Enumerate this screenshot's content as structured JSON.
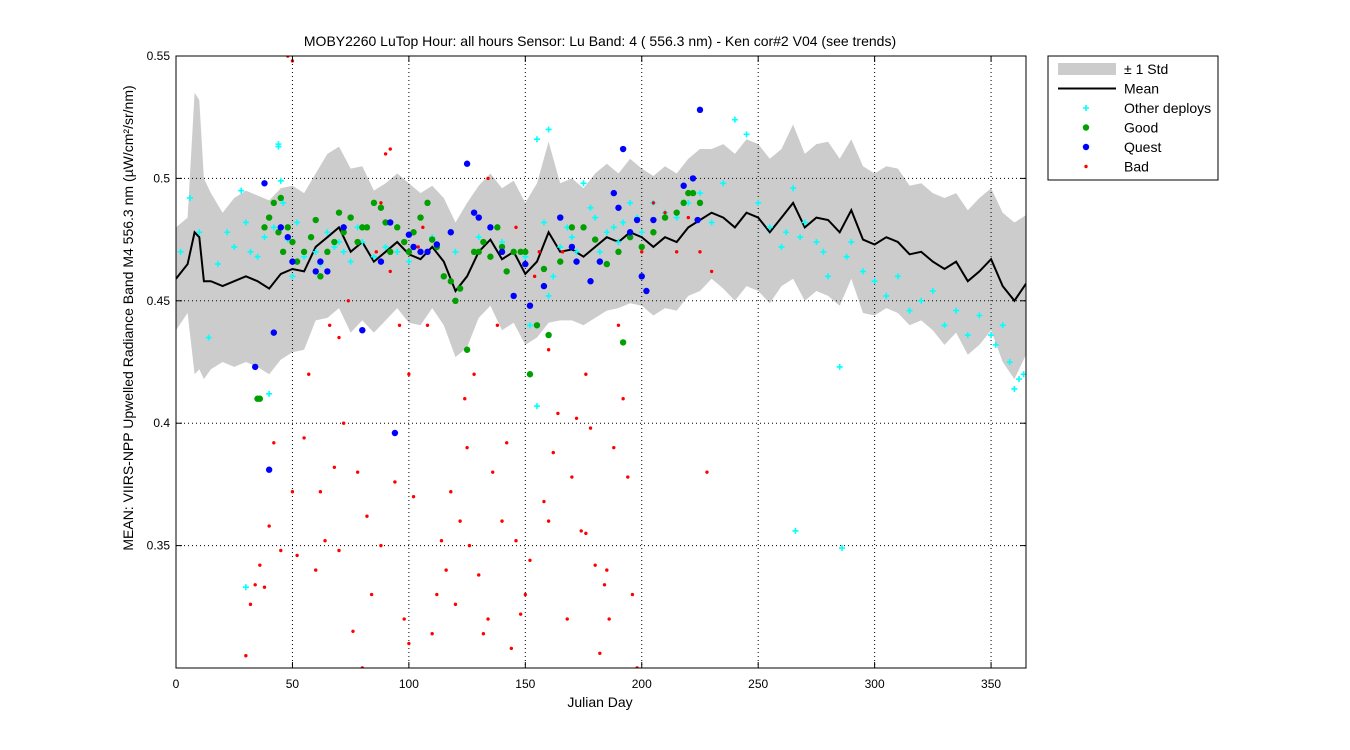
{
  "chart_data": {
    "type": "scatter",
    "title": "MOBY2260   LuTop  Hour: all hours  Sensor: Lu Band: 4 ( 556.3 nm)  - Ken cor#2 V04 (see trends)",
    "xlabel": "Julian Day",
    "ylabel": "MEAN: VIIRS-NPP Upwelled Radiance Band M4 556.3 nm (µW/cm²/sr/nm)",
    "xlim": [
      0,
      365
    ],
    "ylim": [
      0.3,
      0.55
    ],
    "xticks": [
      0,
      50,
      100,
      150,
      200,
      250,
      300,
      350
    ],
    "yticks": [
      0.35,
      0.4,
      0.45,
      0.5,
      0.55
    ],
    "ytick_labels": [
      "0.35",
      "0.4",
      "0.45",
      "0.5",
      "0.55"
    ],
    "grid": true,
    "legend_position": "outside-top-right",
    "legend": [
      "± 1 Std",
      "Mean",
      "Other deploys",
      "Good",
      "Quest",
      "Bad"
    ],
    "colors": {
      "std": "#cccccc",
      "mean": "#000000",
      "other": "#00ffff",
      "good": "#00a000",
      "quest": "#0000ff",
      "bad": "#ff0000"
    },
    "mean_series": {
      "x": [
        0,
        5,
        8,
        10,
        12,
        15,
        20,
        25,
        30,
        35,
        40,
        45,
        50,
        55,
        60,
        65,
        70,
        75,
        80,
        85,
        90,
        95,
        100,
        105,
        110,
        115,
        120,
        125,
        130,
        135,
        140,
        145,
        150,
        155,
        160,
        165,
        170,
        175,
        180,
        185,
        190,
        195,
        200,
        205,
        210,
        215,
        220,
        225,
        230,
        235,
        240,
        245,
        250,
        255,
        260,
        265,
        270,
        275,
        280,
        285,
        290,
        295,
        300,
        305,
        310,
        315,
        320,
        325,
        330,
        335,
        340,
        345,
        350,
        355,
        360,
        365
      ],
      "y": [
        0.459,
        0.465,
        0.478,
        0.476,
        0.458,
        0.458,
        0.456,
        0.458,
        0.46,
        0.458,
        0.455,
        0.461,
        0.463,
        0.462,
        0.472,
        0.476,
        0.48,
        0.47,
        0.474,
        0.466,
        0.47,
        0.474,
        0.469,
        0.467,
        0.472,
        0.466,
        0.454,
        0.46,
        0.47,
        0.475,
        0.467,
        0.47,
        0.461,
        0.466,
        0.478,
        0.47,
        0.471,
        0.468,
        0.472,
        0.476,
        0.474,
        0.478,
        0.476,
        0.472,
        0.476,
        0.474,
        0.48,
        0.483,
        0.486,
        0.484,
        0.48,
        0.486,
        0.484,
        0.478,
        0.484,
        0.49,
        0.48,
        0.484,
        0.483,
        0.478,
        0.487,
        0.475,
        0.473,
        0.476,
        0.474,
        0.469,
        0.47,
        0.466,
        0.463,
        0.466,
        0.458,
        0.462,
        0.467,
        0.456,
        0.45,
        0.457
      ]
    },
    "std_band": {
      "x": [
        0,
        5,
        8,
        10,
        12,
        15,
        20,
        25,
        30,
        35,
        40,
        45,
        50,
        55,
        60,
        65,
        70,
        75,
        80,
        85,
        90,
        95,
        100,
        105,
        110,
        115,
        120,
        125,
        130,
        135,
        140,
        145,
        150,
        155,
        160,
        165,
        170,
        175,
        180,
        185,
        190,
        195,
        200,
        205,
        210,
        215,
        220,
        225,
        230,
        235,
        240,
        245,
        250,
        255,
        260,
        265,
        270,
        275,
        280,
        285,
        290,
        295,
        300,
        305,
        310,
        315,
        320,
        325,
        330,
        335,
        340,
        345,
        350,
        355,
        360,
        365
      ],
      "upper": [
        0.48,
        0.484,
        0.535,
        0.532,
        0.5,
        0.494,
        0.486,
        0.492,
        0.495,
        0.493,
        0.491,
        0.496,
        0.497,
        0.494,
        0.502,
        0.51,
        0.513,
        0.504,
        0.505,
        0.495,
        0.498,
        0.502,
        0.498,
        0.494,
        0.497,
        0.492,
        0.482,
        0.49,
        0.497,
        0.502,
        0.496,
        0.499,
        0.49,
        0.498,
        0.515,
        0.498,
        0.5,
        0.496,
        0.502,
        0.506,
        0.502,
        0.508,
        0.504,
        0.501,
        0.505,
        0.502,
        0.508,
        0.512,
        0.512,
        0.514,
        0.51,
        0.516,
        0.514,
        0.508,
        0.512,
        0.522,
        0.51,
        0.514,
        0.515,
        0.508,
        0.516,
        0.505,
        0.502,
        0.505,
        0.504,
        0.497,
        0.498,
        0.494,
        0.492,
        0.494,
        0.487,
        0.492,
        0.496,
        0.486,
        0.482,
        0.485
      ],
      "lower": [
        0.438,
        0.445,
        0.42,
        0.422,
        0.418,
        0.422,
        0.425,
        0.423,
        0.425,
        0.423,
        0.42,
        0.426,
        0.429,
        0.43,
        0.442,
        0.443,
        0.447,
        0.437,
        0.442,
        0.437,
        0.442,
        0.447,
        0.441,
        0.44,
        0.447,
        0.44,
        0.427,
        0.431,
        0.443,
        0.448,
        0.438,
        0.441,
        0.432,
        0.435,
        0.441,
        0.442,
        0.442,
        0.44,
        0.443,
        0.446,
        0.447,
        0.449,
        0.448,
        0.444,
        0.447,
        0.446,
        0.452,
        0.454,
        0.459,
        0.455,
        0.45,
        0.456,
        0.454,
        0.449,
        0.456,
        0.459,
        0.45,
        0.454,
        0.452,
        0.448,
        0.459,
        0.445,
        0.444,
        0.447,
        0.445,
        0.44,
        0.442,
        0.438,
        0.432,
        0.437,
        0.428,
        0.432,
        0.438,
        0.425,
        0.418,
        0.428
      ]
    },
    "other_deploys": {
      "x": [
        2,
        6,
        10,
        14,
        18,
        22,
        25,
        28,
        30,
        32,
        35,
        38,
        40,
        42,
        44,
        46,
        48,
        50,
        52,
        55,
        58,
        60,
        62,
        65,
        68,
        70,
        72,
        75,
        78,
        80,
        85,
        90,
        95,
        100,
        105,
        110,
        120,
        130,
        140,
        150,
        152,
        155,
        158,
        160,
        162,
        165,
        168,
        170,
        172,
        175,
        178,
        180,
        182,
        185,
        188,
        190,
        192,
        195,
        198,
        200,
        205,
        210,
        215,
        220,
        225,
        230,
        235,
        240,
        245,
        250,
        255,
        260,
        262,
        265,
        268,
        270,
        275,
        278,
        280,
        285,
        288,
        290,
        295,
        300,
        305,
        310,
        315,
        320,
        325,
        330,
        335,
        340,
        345,
        350,
        352,
        355,
        358,
        360,
        362,
        364,
        30,
        266,
        286,
        44,
        45,
        155,
        160
      ],
      "y": [
        0.47,
        0.492,
        0.478,
        0.435,
        0.465,
        0.478,
        0.472,
        0.495,
        0.482,
        0.47,
        0.468,
        0.476,
        0.412,
        0.48,
        0.514,
        0.49,
        0.475,
        0.46,
        0.482,
        0.468,
        0.476,
        0.47,
        0.465,
        0.478,
        0.472,
        0.474,
        0.47,
        0.466,
        0.48,
        0.474,
        0.468,
        0.472,
        0.47,
        0.466,
        0.47,
        0.476,
        0.47,
        0.476,
        0.474,
        0.468,
        0.44,
        0.516,
        0.482,
        0.52,
        0.46,
        0.472,
        0.48,
        0.476,
        0.47,
        0.498,
        0.488,
        0.484,
        0.47,
        0.478,
        0.48,
        0.474,
        0.482,
        0.49,
        0.484,
        0.478,
        0.49,
        0.486,
        0.484,
        0.49,
        0.494,
        0.482,
        0.498,
        0.524,
        0.518,
        0.49,
        0.48,
        0.472,
        0.478,
        0.496,
        0.476,
        0.482,
        0.474,
        0.47,
        0.46,
        0.423,
        0.468,
        0.474,
        0.462,
        0.458,
        0.452,
        0.46,
        0.446,
        0.45,
        0.454,
        0.44,
        0.446,
        0.436,
        0.444,
        0.436,
        0.432,
        0.44,
        0.425,
        0.414,
        0.418,
        0.42,
        0.333,
        0.356,
        0.349,
        0.513,
        0.499,
        0.407,
        0.452
      ]
    },
    "good": {
      "x": [
        35,
        36,
        38,
        40,
        42,
        44,
        45,
        46,
        48,
        50,
        52,
        55,
        58,
        60,
        62,
        65,
        68,
        70,
        72,
        75,
        78,
        80,
        82,
        85,
        88,
        90,
        92,
        95,
        98,
        100,
        102,
        105,
        108,
        110,
        112,
        115,
        118,
        120,
        122,
        125,
        128,
        130,
        132,
        135,
        138,
        140,
        142,
        145,
        148,
        150,
        152,
        155,
        158,
        160,
        165,
        170,
        175,
        180,
        185,
        190,
        192,
        195,
        200,
        205,
        210,
        215,
        218,
        220,
        222,
        225
      ],
      "y": [
        0.41,
        0.41,
        0.48,
        0.484,
        0.49,
        0.478,
        0.492,
        0.47,
        0.48,
        0.474,
        0.466,
        0.47,
        0.476,
        0.483,
        0.46,
        0.47,
        0.474,
        0.486,
        0.478,
        0.484,
        0.474,
        0.48,
        0.48,
        0.49,
        0.488,
        0.482,
        0.47,
        0.48,
        0.474,
        0.47,
        0.478,
        0.484,
        0.49,
        0.475,
        0.472,
        0.46,
        0.458,
        0.45,
        0.455,
        0.43,
        0.47,
        0.47,
        0.474,
        0.468,
        0.48,
        0.472,
        0.462,
        0.47,
        0.47,
        0.47,
        0.42,
        0.44,
        0.463,
        0.436,
        0.466,
        0.48,
        0.48,
        0.475,
        0.465,
        0.47,
        0.433,
        0.476,
        0.472,
        0.478,
        0.484,
        0.486,
        0.49,
        0.494,
        0.494,
        0.49
      ],
      "labels": []
    },
    "quest": {
      "x": [
        34,
        38,
        40,
        42,
        45,
        48,
        50,
        60,
        62,
        65,
        72,
        80,
        88,
        92,
        94,
        100,
        102,
        105,
        108,
        112,
        118,
        125,
        128,
        130,
        135,
        140,
        145,
        150,
        152,
        158,
        165,
        170,
        172,
        178,
        182,
        188,
        190,
        192,
        195,
        198,
        200,
        202,
        205,
        218,
        222,
        224,
        225
      ],
      "y": [
        0.423,
        0.498,
        0.381,
        0.437,
        0.48,
        0.476,
        0.466,
        0.462,
        0.466,
        0.462,
        0.48,
        0.438,
        0.466,
        0.482,
        0.396,
        0.477,
        0.472,
        0.47,
        0.47,
        0.473,
        0.478,
        0.506,
        0.486,
        0.484,
        0.48,
        0.47,
        0.452,
        0.465,
        0.448,
        0.456,
        0.484,
        0.472,
        0.466,
        0.458,
        0.466,
        0.494,
        0.488,
        0.512,
        0.478,
        0.483,
        0.46,
        0.454,
        0.483,
        0.497,
        0.5,
        0.483,
        0.528
      ]
    },
    "bad": {
      "x": [
        30,
        32,
        34,
        36,
        38,
        40,
        42,
        45,
        48,
        50,
        52,
        55,
        57,
        60,
        62,
        64,
        66,
        68,
        70,
        72,
        74,
        76,
        78,
        80,
        82,
        84,
        86,
        88,
        90,
        92,
        94,
        96,
        98,
        100,
        102,
        104,
        106,
        108,
        110,
        112,
        114,
        116,
        118,
        120,
        122,
        124,
        126,
        128,
        130,
        132,
        134,
        136,
        138,
        140,
        142,
        144,
        146,
        148,
        150,
        152,
        154,
        156,
        158,
        160,
        162,
        164,
        166,
        168,
        170,
        172,
        174,
        176,
        178,
        180,
        182,
        184,
        186,
        188,
        190,
        192,
        194,
        196,
        198,
        200,
        205,
        210,
        215,
        220,
        225,
        228,
        230,
        50,
        70,
        88,
        92,
        100,
        125,
        134,
        146,
        160,
        176,
        185
      ],
      "y": [
        0.305,
        0.326,
        0.334,
        0.342,
        0.333,
        0.358,
        0.392,
        0.348,
        0.55,
        0.372,
        0.346,
        0.394,
        0.42,
        0.34,
        0.372,
        0.352,
        0.44,
        0.382,
        0.348,
        0.4,
        0.45,
        0.315,
        0.38,
        0.3,
        0.362,
        0.33,
        0.47,
        0.49,
        0.51,
        0.462,
        0.376,
        0.44,
        0.32,
        0.42,
        0.37,
        0.472,
        0.48,
        0.44,
        0.314,
        0.33,
        0.352,
        0.34,
        0.372,
        0.326,
        0.36,
        0.41,
        0.35,
        0.42,
        0.338,
        0.314,
        0.32,
        0.38,
        0.44,
        0.36,
        0.392,
        0.308,
        0.352,
        0.322,
        0.33,
        0.344,
        0.46,
        0.47,
        0.368,
        0.43,
        0.388,
        0.404,
        0.47,
        0.32,
        0.378,
        0.402,
        0.356,
        0.42,
        0.398,
        0.342,
        0.306,
        0.334,
        0.32,
        0.39,
        0.44,
        0.41,
        0.378,
        0.33,
        0.3,
        0.47,
        0.49,
        0.486,
        0.47,
        0.484,
        0.47,
        0.38,
        0.462,
        0.548,
        0.435,
        0.35,
        0.512,
        0.31,
        0.39,
        0.5,
        0.48,
        0.36,
        0.355,
        0.34
      ]
    }
  }
}
